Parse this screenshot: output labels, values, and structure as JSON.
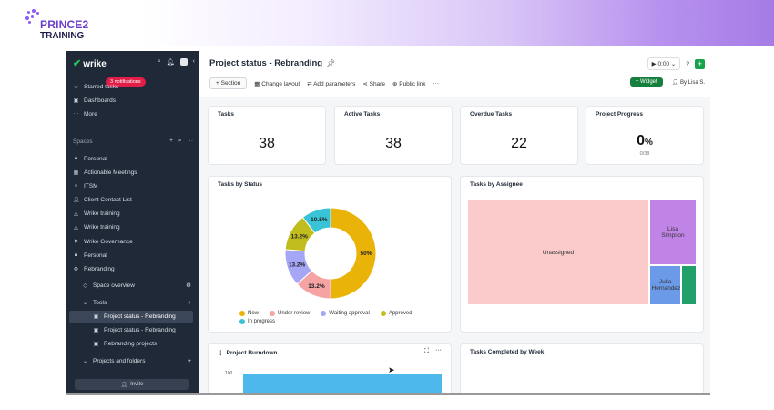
{
  "brand": {
    "name": "PRINCE2",
    "sub": "TRAINING",
    "color": "#6d3fcf"
  },
  "sidebar": {
    "logo": "wrike",
    "top_icons": [
      "search-icon",
      "bell-icon",
      "avatar",
      "chevron-left-icon"
    ],
    "notification": "3 notifications",
    "starred": "Starred tasks",
    "dashboards": "Dashboards",
    "more": "More",
    "spaces_label": "Spaces",
    "spaces": [
      {
        "label": "Personal",
        "icon": "lock-icon"
      },
      {
        "label": "Actionable Meetings",
        "icon": "meeting-icon"
      },
      {
        "label": "ITSM",
        "icon": "headset-icon"
      },
      {
        "label": "Client Contact List",
        "icon": "person-icon"
      },
      {
        "label": "Wrike training",
        "icon": "triangle-icon"
      },
      {
        "label": "Wrike training",
        "icon": "triangle-icon"
      },
      {
        "label": "Wrike Governance",
        "icon": "flag-icon"
      },
      {
        "label": "Personal",
        "icon": "lock-icon"
      },
      {
        "label": "Rebranding",
        "icon": "gear-icon"
      }
    ],
    "space_overview": "Space overview",
    "tools": "Tools",
    "tool_items": [
      "Project status - Rebranding",
      "Project status - Rebranding",
      "Rebranding projects"
    ],
    "projects_folders": "Projects and folders",
    "invite": "Invite"
  },
  "header": {
    "title": "Project status - Rebranding",
    "timer": "0:00",
    "toolbar": {
      "section": "Section",
      "change_layout": "Change layout",
      "add_parameters": "Add parameters",
      "share": "Share",
      "public_link": "Public link",
      "more": "···"
    },
    "widget": "Widget",
    "by_user": "By Lisa S."
  },
  "kpis": [
    {
      "label": "Tasks",
      "value": "38"
    },
    {
      "label": "Active Tasks",
      "value": "38"
    },
    {
      "label": "Overdue Tasks",
      "value": "22"
    },
    {
      "label": "Project Progress",
      "value": "0",
      "unit": "%",
      "sub": "0/38"
    }
  ],
  "tasks_by_status": {
    "title": "Tasks by Status",
    "labels": [
      "50%",
      "13.2%",
      "13.2%",
      "13.2%",
      "10.5%"
    ],
    "legend": [
      "New",
      "Under review",
      "Waiting approval",
      "Approved",
      "In progress"
    ]
  },
  "chart_data": {
    "type": "pie",
    "title": "Tasks by Status",
    "categories": [
      "New",
      "Under review",
      "Waiting approval",
      "Approved",
      "In progress"
    ],
    "values": [
      50,
      13.2,
      13.2,
      13.2,
      10.5
    ],
    "colors": [
      "#eab308",
      "#f5a3a3",
      "#a5a6f6",
      "#c2bd1f",
      "#38c3d6"
    ],
    "legend": "bottom"
  },
  "tasks_by_assignee": {
    "title": "Tasks by Assignee",
    "items": [
      "Unassigned",
      "Lisa Simpson",
      "Julia Hernandez",
      ""
    ]
  },
  "project_burndown": {
    "title": "Project Burndown",
    "y_top": "100"
  },
  "tasks_completed": {
    "title": "Tasks Completed by Week"
  }
}
